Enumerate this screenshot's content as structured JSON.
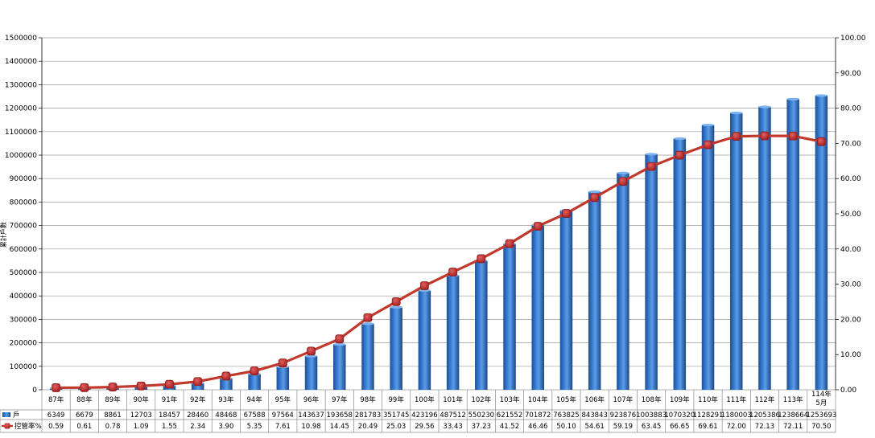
{
  "chart_data": {
    "type": "bar",
    "categories": [
      "87年",
      "88年",
      "89年",
      "90年",
      "91年",
      "92年",
      "93年",
      "94年",
      "95年",
      "96年",
      "97年",
      "98年",
      "99年",
      "100年",
      "101年",
      "102年",
      "103年",
      "104年",
      "105年",
      "106年",
      "107年",
      "108年",
      "109年",
      "110年",
      "111年",
      "112年",
      "113年",
      "114年 5月"
    ],
    "series": [
      {
        "name": "戶",
        "type": "bar",
        "axis": "left",
        "color": "#2e6fc2",
        "values": [
          6349,
          6679,
          8861,
          12703,
          18457,
          28460,
          48468,
          67588,
          97564,
          143637,
          193658,
          281783,
          351745,
          423196,
          487512,
          550230,
          621552,
          701872,
          763825,
          843843,
          923876,
          1003883,
          1070320,
          1128291,
          1180003,
          1205386,
          1238664,
          1253693
        ]
      },
      {
        "name": "控管率%",
        "type": "line",
        "axis": "right",
        "color": "#c0392b",
        "values": [
          0.59,
          0.61,
          0.78,
          1.09,
          1.55,
          2.34,
          3.9,
          5.35,
          7.61,
          10.98,
          14.45,
          20.49,
          25.03,
          29.56,
          33.43,
          37.23,
          41.52,
          46.46,
          50.1,
          54.61,
          59.19,
          63.45,
          66.65,
          69.61,
          72.0,
          72.13,
          72.11,
          70.5
        ],
        "labels": [
          "0.59",
          "0.61",
          "0.78",
          "1.09",
          "1.55",
          "2.34",
          "3.90",
          "5.35",
          "7.61",
          "10.98",
          "14.45",
          "20.49",
          "25.03",
          "29.56",
          "33.43",
          "37.23",
          "41.52",
          "46.46",
          "50.10",
          "54.61",
          "59.19",
          "63.45",
          "66.65",
          "69.61",
          "72.00",
          "72.13",
          "72.11",
          "70.50"
        ]
      }
    ],
    "ylabel": "累計戶數",
    "ylim": [
      0,
      1500000
    ],
    "yticks": [
      0,
      100000,
      200000,
      300000,
      400000,
      500000,
      600000,
      700000,
      800000,
      900000,
      1000000,
      1100000,
      1200000,
      1300000,
      1400000,
      1500000
    ],
    "y2lim": [
      0,
      100
    ],
    "y2ticks": [
      "0.00",
      "10.00",
      "20.00",
      "30.00",
      "40.00",
      "50.00",
      "60.00",
      "70.00",
      "80.00",
      "90.00",
      "100.00"
    ],
    "grid": true,
    "legend": "data-table"
  }
}
